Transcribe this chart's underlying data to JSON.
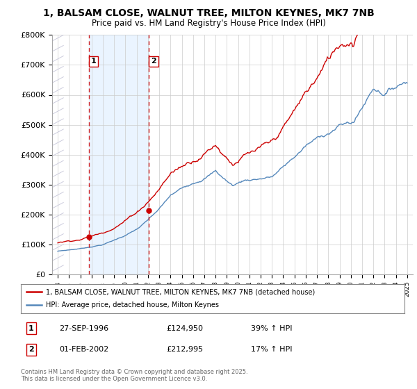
{
  "title_line1": "1, BALSAM CLOSE, WALNUT TREE, MILTON KEYNES, MK7 7NB",
  "title_line2": "Price paid vs. HM Land Registry's House Price Index (HPI)",
  "legend_label1": "1, BALSAM CLOSE, WALNUT TREE, MILTON KEYNES, MK7 7NB (detached house)",
  "legend_label2": "HPI: Average price, detached house, Milton Keynes",
  "sale1_date": "27-SEP-1996",
  "sale1_price": 124950,
  "sale1_hpi_pct": "39%",
  "sale1_label": "1",
  "sale2_date": "01-FEB-2002",
  "sale2_price": 212995,
  "sale2_hpi_pct": "17%",
  "sale2_label": "2",
  "copyright": "Contains HM Land Registry data © Crown copyright and database right 2025.\nThis data is licensed under the Open Government Licence v3.0.",
  "red_color": "#cc0000",
  "blue_color": "#5588bb",
  "blue_fill_color": "#ddeeff",
  "hatch_color": "#ccccdd",
  "grid_color": "#cccccc",
  "ylim": [
    0,
    800000
  ],
  "yticks": [
    0,
    100000,
    200000,
    300000,
    400000,
    500000,
    600000,
    700000,
    800000
  ],
  "ytick_labels": [
    "£0",
    "£100K",
    "£200K",
    "£300K",
    "£400K",
    "£500K",
    "£600K",
    "£700K",
    "£800K"
  ],
  "xstart": 1994,
  "xend": 2025,
  "sale1_x": 1996.75,
  "sale2_x": 2002.083
}
